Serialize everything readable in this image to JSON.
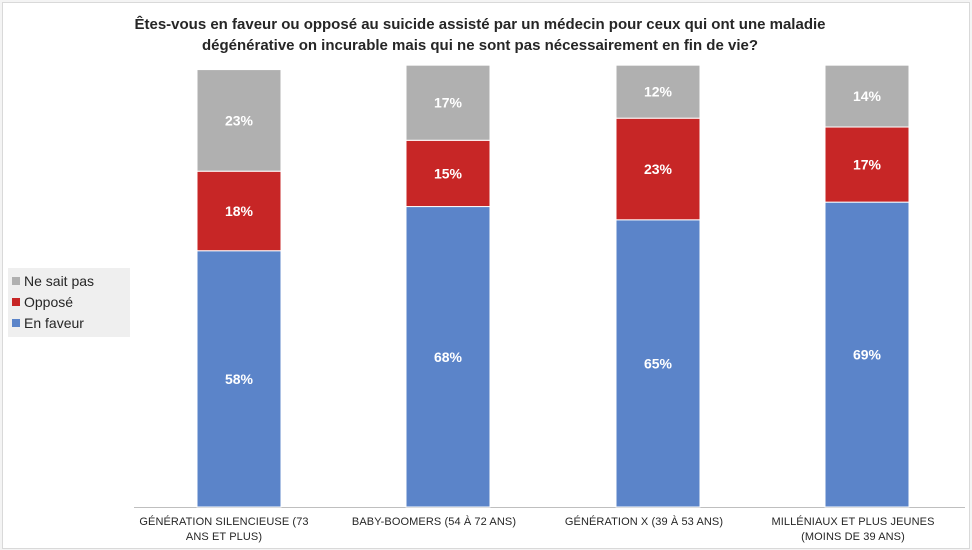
{
  "chart_data": {
    "type": "bar",
    "stacked": true,
    "title": "Êtes-vous en faveur ou opposé au suicide assisté par un médecin pour ceux qui ont une maladie dégénérative on incurable mais qui ne sont pas nécessairement en fin de vie?",
    "categories": [
      "GÉNÉRATION SILENCIEUSE (73 ANS ET PLUS)",
      "BABY-BOOMERS (54 À 72 ANS)",
      "GÉNÉRATION X (39 À 53 ANS)",
      "MILLÉNIAUX ET PLUS JEUNES (MOINS DE 39 ANS)"
    ],
    "series": [
      {
        "name": "En faveur",
        "values": [
          58,
          68,
          65,
          69
        ],
        "labels": [
          "58%",
          "68%",
          "65%",
          "69%"
        ],
        "color": "#5b84c9"
      },
      {
        "name": "Opposé",
        "values": [
          18,
          15,
          23,
          17
        ],
        "labels": [
          "18%",
          "15%",
          "23%",
          "17%"
        ],
        "color": "#c72626"
      },
      {
        "name": "Ne sait pas",
        "values": [
          23,
          17,
          12,
          14
        ],
        "labels": [
          "23%",
          "17%",
          "12%",
          "14%"
        ],
        "color": "#b0b0b0"
      }
    ],
    "legend_order": [
      "Ne sait pas",
      "Opposé",
      "En faveur"
    ],
    "legend_position": "left",
    "ylim": [
      0,
      100
    ],
    "grid": false
  }
}
